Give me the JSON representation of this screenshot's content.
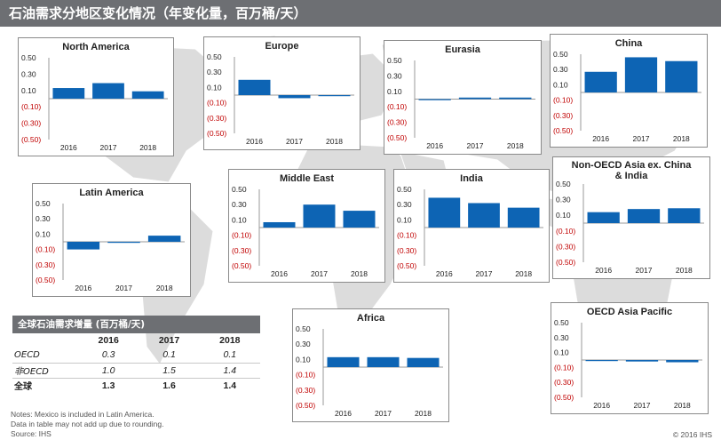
{
  "header": {
    "title": "石油需求分地区变化情况（年变化量，百万桶/天）"
  },
  "chart_data": [
    {
      "type": "bar",
      "title": "North America",
      "categories": [
        "2016",
        "2017",
        "2018"
      ],
      "values": [
        0.13,
        0.19,
        0.09
      ],
      "ylim": [
        -0.5,
        0.5
      ],
      "ticks": [
        "0.50",
        "0.30",
        "0.10",
        "(0.10)",
        "(0.30)",
        "(0.50)"
      ]
    },
    {
      "type": "bar",
      "title": "Europe",
      "categories": [
        "2016",
        "2017",
        "2018"
      ],
      "values": [
        0.2,
        -0.04,
        -0.01
      ],
      "ylim": [
        -0.5,
        0.5
      ],
      "ticks": [
        "0.50",
        "0.30",
        "0.10",
        "(0.10)",
        "(0.30)",
        "(0.50)"
      ]
    },
    {
      "type": "bar",
      "title": "Eurasia",
      "categories": [
        "2016",
        "2017",
        "2018"
      ],
      "values": [
        0.0,
        0.02,
        0.02
      ],
      "ylim": [
        -0.5,
        0.5
      ],
      "ticks": [
        "0.50",
        "0.30",
        "0.10",
        "(0.10)",
        "(0.30)",
        "(0.50)"
      ]
    },
    {
      "type": "bar",
      "title": "China",
      "categories": [
        "2016",
        "2017",
        "2018"
      ],
      "values": [
        0.27,
        0.46,
        0.41
      ],
      "ylim": [
        -0.5,
        0.5
      ],
      "ticks": [
        "0.50",
        "0.30",
        "0.10",
        "(0.10)",
        "(0.30)",
        "(0.50)"
      ]
    },
    {
      "type": "bar",
      "title": "Latin America",
      "categories": [
        "2016",
        "2017",
        "2018"
      ],
      "values": [
        -0.1,
        -0.01,
        0.08
      ],
      "ylim": [
        -0.5,
        0.5
      ],
      "ticks": [
        "0.50",
        "0.30",
        "0.10",
        "(0.10)",
        "(0.30)",
        "(0.50)"
      ]
    },
    {
      "type": "bar",
      "title": "Middle East",
      "categories": [
        "2016",
        "2017",
        "2018"
      ],
      "values": [
        0.07,
        0.3,
        0.22
      ],
      "ylim": [
        -0.5,
        0.5
      ],
      "ticks": [
        "0.50",
        "0.30",
        "0.10",
        "(0.10)",
        "(0.30)",
        "(0.50)"
      ]
    },
    {
      "type": "bar",
      "title": "India",
      "categories": [
        "2016",
        "2017",
        "2018"
      ],
      "values": [
        0.39,
        0.32,
        0.26
      ],
      "ylim": [
        -0.5,
        0.5
      ],
      "ticks": [
        "0.50",
        "0.30",
        "0.10",
        "(0.10)",
        "(0.30)",
        "(0.50)"
      ]
    },
    {
      "type": "bar",
      "title": "Non-OECD Asia ex. China & India",
      "categories": [
        "2016",
        "2017",
        "2018"
      ],
      "values": [
        0.14,
        0.18,
        0.19
      ],
      "ylim": [
        -0.5,
        0.5
      ],
      "ticks": [
        "0.50",
        "0.30",
        "0.10",
        "(0.10)",
        "(0.30)",
        "(0.50)"
      ]
    },
    {
      "type": "bar",
      "title": "Africa",
      "categories": [
        "2016",
        "2017",
        "2018"
      ],
      "values": [
        0.13,
        0.13,
        0.12
      ],
      "ylim": [
        -0.5,
        0.5
      ],
      "ticks": [
        "0.50",
        "0.30",
        "0.10",
        "(0.10)",
        "(0.30)",
        "(0.50)"
      ]
    },
    {
      "type": "bar",
      "title": "OECD Asia Pacific",
      "categories": [
        "2016",
        "2017",
        "2018"
      ],
      "values": [
        0.0,
        -0.02,
        -0.03
      ],
      "ylim": [
        -0.5,
        0.5
      ],
      "ticks": [
        "0.50",
        "0.30",
        "0.10",
        "(0.10)",
        "(0.30)",
        "(0.50)"
      ]
    }
  ],
  "summary": {
    "title": "全球石油需求增量 (百万桶/天)",
    "columns": [
      "2016",
      "2017",
      "2018"
    ],
    "rows": [
      {
        "label": "OECD",
        "values": [
          "0.3",
          "0.1",
          "0.1"
        ]
      },
      {
        "label": "非OECD",
        "values": [
          "1.0",
          "1.5",
          "1.4"
        ]
      },
      {
        "label": "全球",
        "values": [
          "1.3",
          "1.6",
          "1.4"
        ]
      }
    ]
  },
  "notes": [
    "Notes: Mexico is included in Latin America.",
    "Data in table may not add up due to rounding.",
    "Source: IHS"
  ],
  "copyright": "© 2016 IHS",
  "colors": {
    "bar": "#0d64b4",
    "negative_tick": "#c00000",
    "header": "#6d6f73",
    "map": "#dcdcdc"
  }
}
